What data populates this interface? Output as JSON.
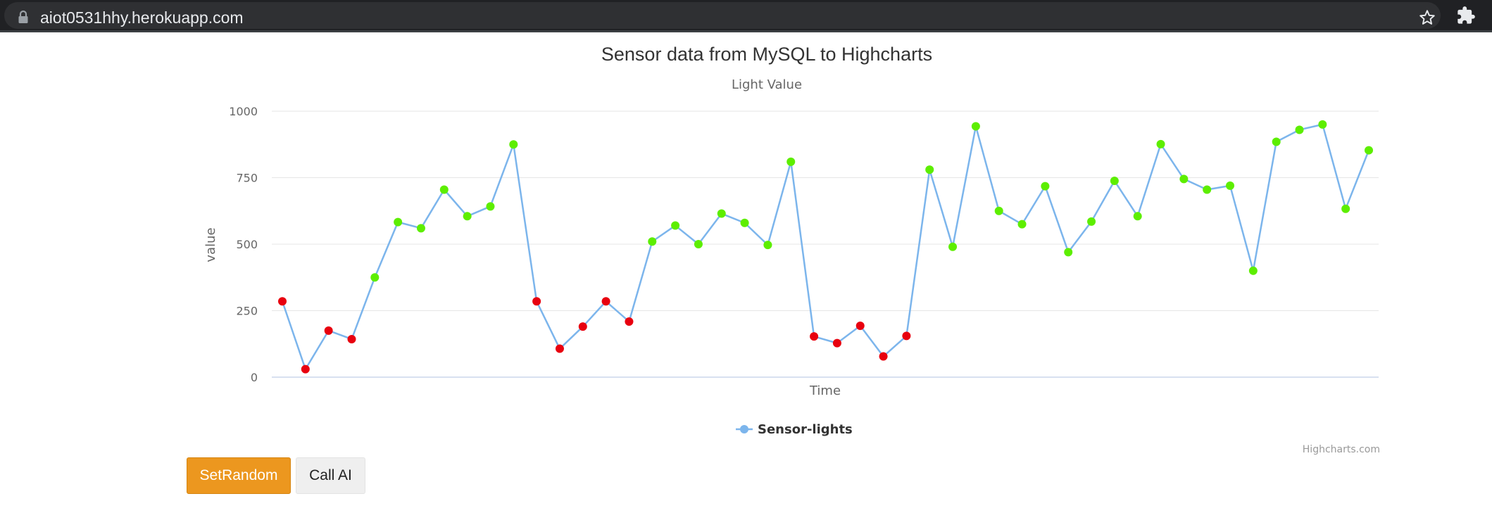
{
  "browser": {
    "url": "aiot0531hhy.herokuapp.com"
  },
  "chart_data": {
    "type": "line",
    "title": "Sensor data from MySQL to Highcharts",
    "subtitle": "Light Value",
    "xlabel": "Time",
    "ylabel": "value",
    "ylim": [
      0,
      1000
    ],
    "yticks": [
      0,
      250,
      500,
      750,
      1000
    ],
    "grid": true,
    "legend_position": "bottom-center",
    "credits": "Highcharts.com",
    "series": [
      {
        "name": "Sensor-lights",
        "line_color": "#7cb5ec",
        "threshold": 300,
        "low_color": "#e8000f",
        "high_color": "#5dee00",
        "values": [
          285,
          30,
          175,
          143,
          375,
          583,
          560,
          705,
          605,
          642,
          875,
          285,
          107,
          190,
          285,
          209,
          510,
          570,
          500,
          615,
          580,
          497,
          810,
          153,
          128,
          193,
          78,
          155,
          780,
          490,
          943,
          625,
          575,
          718,
          470,
          585,
          738,
          605,
          876,
          745,
          705,
          720,
          400,
          885,
          930,
          950,
          633,
          853
        ]
      }
    ]
  },
  "buttons": {
    "set_random": "SetRandom",
    "call_ai": "Call AI"
  }
}
